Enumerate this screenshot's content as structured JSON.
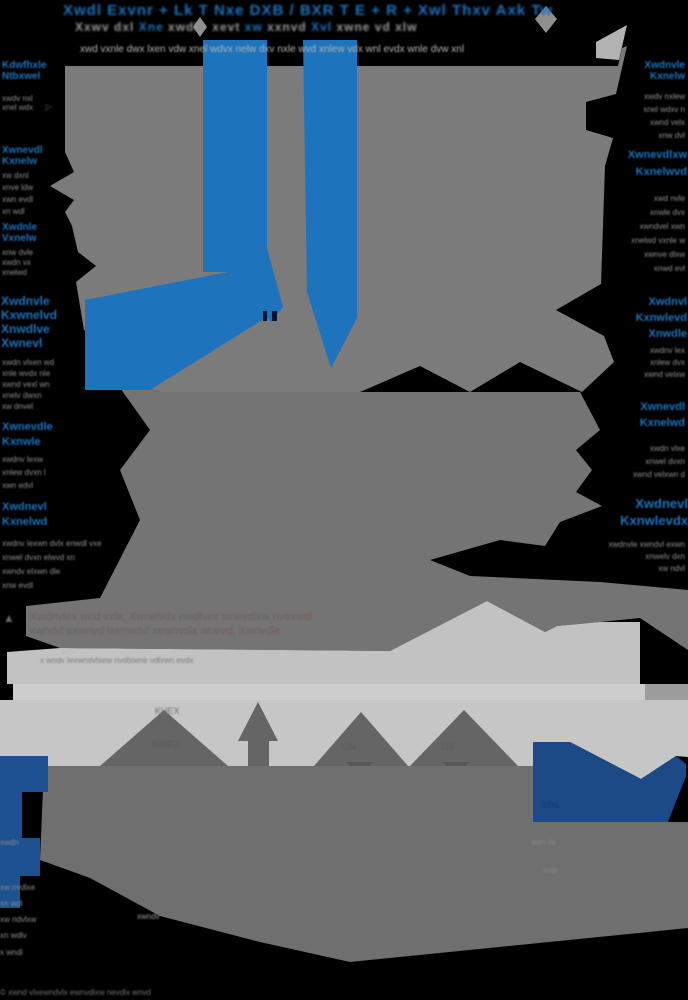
{
  "colors": {
    "blue": "#1e73bd",
    "navy_left": "#1d5190",
    "navy_right": "#1c4a87",
    "mass_top": "#7b7b7b",
    "mass_lower": "#747474",
    "light_band": "#c2c2c2",
    "strip_left": "#cdcdcd",
    "strip_right": "#9c9c9c",
    "light_low": "#c6c6c6",
    "mountain": "#656565",
    "mountain_dark": "#585858",
    "mass_bottom": "#6f6f6f",
    "gray_text": "#8d8d8d",
    "subtitle_gray": "#b3b3b3",
    "banner_text": "#6b5f5c",
    "band_text": "#7d7d7d",
    "bottom_label": "#5e5e5e",
    "check_text": "#123a6b",
    "diamond": "#8f8f8f",
    "black": "#000000"
  },
  "header": {
    "line1": "Xwdl Exvnr + Lk T Nxe DXB / BXR T E + R + Xwl Thxv Axk Tw",
    "line2_segments": [
      {
        "t": "Xxwv dxl ",
        "c": "g"
      },
      {
        "t": "Xne ",
        "c": "b"
      },
      {
        "t": "xwdl · xevt ",
        "c": "g"
      },
      {
        "t": "xw ",
        "c": "b"
      },
      {
        "t": "xxnvd ",
        "c": "g"
      },
      {
        "t": "Xvl ",
        "c": "b"
      },
      {
        "t": "xwne vd xlw",
        "c": "g"
      }
    ],
    "subtitle_lines": [
      "xwd vxnle dwx lxen vdw xnel wdvx nelw dxv nxle wvd xnlew vdx wnl evdx wnle dvw xnl"
    ]
  },
  "left_column": [
    {
      "heading": [
        "Kdwfhxle",
        "Ntbxwel"
      ],
      "body": [
        "xwdv nxl",
        "xnel wdx"
      ]
    },
    {
      "heading": [
        "Xwnevdl",
        "Kxnelw"
      ],
      "body": [
        "xw dxnl",
        "xnve ldw",
        "xwn evdl",
        "xn wdl"
      ]
    },
    {
      "heading": [
        "Xwdnle",
        "Vxnelw"
      ],
      "body": [
        "xnw dvle",
        "xwdn vx",
        "xnelwd"
      ]
    },
    {
      "callout": [
        "Xwdnvle",
        "Kxwnelvd",
        "Xnwdlve",
        "Xwnevl"
      ],
      "body": [
        "xwdn vlxen wd",
        "xnle wvdx nle",
        "xwnd vexl wn",
        "xnelv dwxn",
        "xw dnvel"
      ]
    },
    {
      "heading": [
        "Xwnevdle",
        "Kxnwle"
      ],
      "body": [
        "xwdnv lexw",
        "xnlew dvxn l",
        "xwn edvl"
      ]
    },
    {
      "heading": [
        "Xwdnevl",
        "Kxnelwd"
      ],
      "body": [
        "xwdnv lexwn dvlx enwdl vxe",
        "xnwel dvxn elwvd xn",
        "xwndv elxwn dle",
        "xnw evdl"
      ]
    }
  ],
  "right_column": [
    {
      "heading": [
        "Xwdnvle",
        "Kxnelw"
      ],
      "body": [
        "xwdv nxlew",
        "xnel wdxv n",
        "xwnd velx",
        "xnw dvl"
      ]
    },
    {
      "heading": [
        "Xwnevdlxw",
        "Kxnelwvd"
      ],
      "body": [
        "xwd nvle",
        "xnwle dvx",
        "xwndvel xwn",
        "xnelwd vxnle w",
        "xwnve dlxw",
        "xnwd evl"
      ]
    },
    {
      "heading": [
        "Xwdnvl",
        "Kxnwlevd",
        "Xnwdle"
      ],
      "body": [
        "xwdnv lex",
        "xnlew dvx",
        "xwnd velxw"
      ]
    },
    {
      "heading": [
        "Xwnevdl",
        "Kxnelwd"
      ],
      "body": [
        "xwdn vlxe",
        "xnwel dvxn",
        "xwnd velxwn d"
      ]
    },
    {
      "heading": [
        "Xwdnevl",
        "Kxnwlevdx"
      ],
      "body": [
        "xwdnvle xwndvl exwn",
        "xnwelv dxn",
        "xw ndvl"
      ]
    }
  ],
  "banner": {
    "icon": "▲",
    "para_lines": [
      "Xwdnvlex wnd vxle, Xwnelvdx nwdlvex wnevdlxw nvexwdl",
      "xwndvl exwnvd lxenwdvl xewnvdlx wnevd, Xwnvdle"
    ],
    "band_line": "x wndv lexwndvlxew nvdlxwne vdlxwn evdx"
  },
  "bottom": {
    "peak_label_top": "KHEX",
    "peak_label": "KSFX",
    "label_on": "ON",
    "label_of": "OF",
    "check_value": "38%",
    "check_sub1": "xwn dv",
    "check_sub2": "xnle",
    "left_stub": "xwdn",
    "left_rows": [
      "xw  nvdlxe",
      "xn  wdl",
      "xw  ndvlxw",
      "xn  wdlv"
    ],
    "left_row_last": "x  wndl",
    "mid_blob": "xwndv",
    "footer": "© xwnd vlxewndvlx ewnvdlxw nevdlx wnvd"
  }
}
